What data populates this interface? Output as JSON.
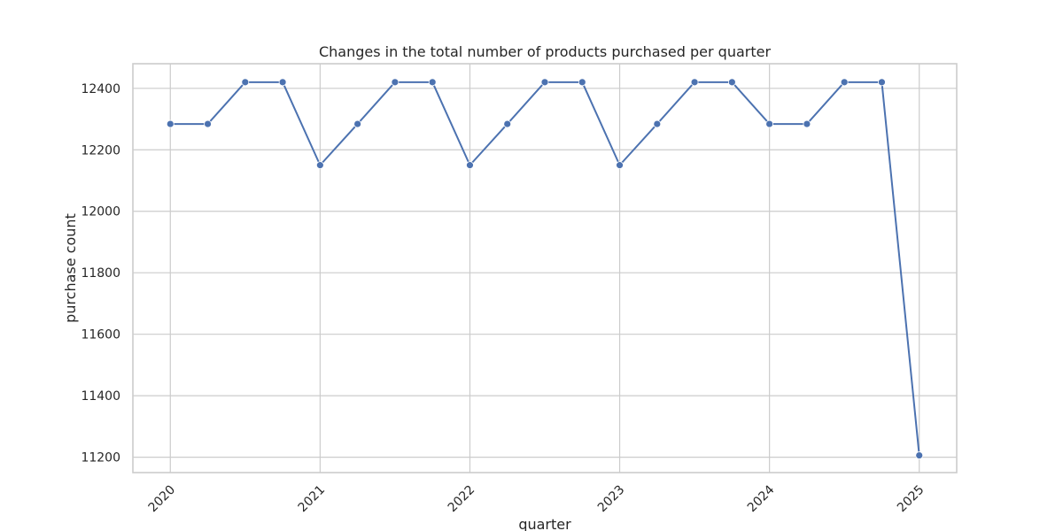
{
  "chart_data": {
    "type": "line",
    "title": "Changes in the total number of products purchased per quarter",
    "xlabel": "quarter",
    "ylabel": "purchase count",
    "x": [
      2020.0,
      2020.25,
      2020.5,
      2020.75,
      2021.0,
      2021.25,
      2021.5,
      2021.75,
      2022.0,
      2022.25,
      2022.5,
      2022.75,
      2023.0,
      2023.25,
      2023.5,
      2023.75,
      2024.0,
      2024.25,
      2024.5,
      2024.75,
      2025.0
    ],
    "series": [
      {
        "name": "purchase count",
        "color": "#4c72b0",
        "values": [
          12284,
          12284,
          12420,
          12420,
          12150,
          12284,
          12420,
          12420,
          12150,
          12284,
          12420,
          12420,
          12150,
          12284,
          12420,
          12420,
          12284,
          12284,
          12420,
          12420,
          11206
        ]
      }
    ],
    "xlim": [
      2019.75,
      2025.25
    ],
    "ylim": [
      11150,
      12480
    ],
    "x_ticks": [
      2020,
      2021,
      2022,
      2023,
      2024,
      2025
    ],
    "x_tick_labels": [
      "2020",
      "2021",
      "2022",
      "2023",
      "2024",
      "2025"
    ],
    "y_ticks": [
      11200,
      11400,
      11600,
      11800,
      12000,
      12200,
      12400
    ],
    "y_tick_labels": [
      "11200",
      "11400",
      "11600",
      "11800",
      "12000",
      "12200",
      "12400"
    ],
    "grid": true,
    "markers": true
  },
  "colors": {
    "line": "#4c72b0",
    "grid": "#cccccc",
    "frame": "#cccccc",
    "text": "#262626"
  }
}
